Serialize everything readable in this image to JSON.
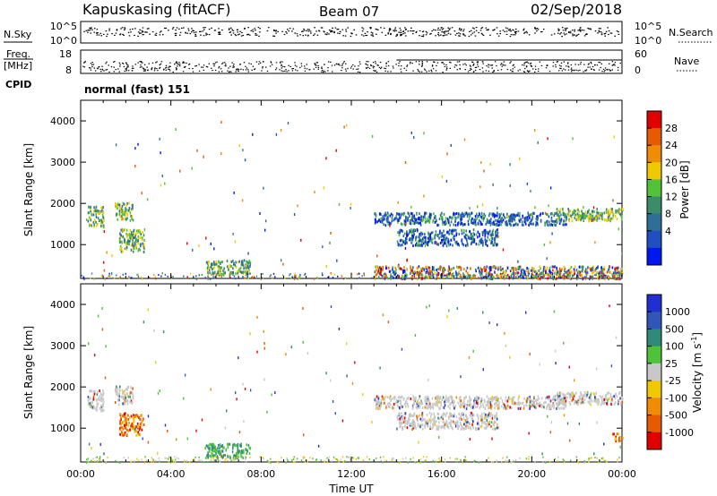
{
  "header": {
    "station": "Kapuskasing (fitACF)",
    "beam": "Beam 07",
    "date": "02/Sep/2018"
  },
  "noise_panel": {
    "left_label": "N.Sky",
    "left_ticks": [
      "10^5",
      "10^0"
    ],
    "right_label": "N.Search",
    "right_ticks": [
      "10^5",
      "10^0"
    ]
  },
  "freq_panel": {
    "left_label_1": "Freq.",
    "left_label_2": "[MHz]",
    "left_ticks": [
      "18",
      "8"
    ],
    "right_label": "Nave",
    "right_ticks": [
      "60",
      "0"
    ]
  },
  "cpid": {
    "label": "CPID",
    "value": "normal (fast) 151"
  },
  "colors": {
    "power": [
      "#0018f0",
      "#1f4fc0",
      "#2e6f9a",
      "#3b8c6a",
      "#52c238",
      "#f0c800",
      "#f08c00",
      "#e85a00",
      "#e00000"
    ],
    "velocity": [
      "#1f2fd0",
      "#2f56b8",
      "#2f8a78",
      "#4fc23a",
      "#c8c8c8",
      "#f0c800",
      "#f08c00",
      "#e85a00",
      "#e00000"
    ]
  },
  "chart_data": [
    {
      "type": "heatmap",
      "panel": "power",
      "ylabel": "Slant Range [km]",
      "ylim": [
        180,
        4500
      ],
      "yticks": [
        "1000",
        "2000",
        "3000",
        "4000"
      ],
      "colorbar": {
        "label": "Power [dB]",
        "ticks": [
          "4",
          "8",
          "12",
          "16",
          "20",
          "24",
          "28"
        ],
        "range": [
          0,
          30
        ]
      },
      "echo_regions": [
        {
          "t": [
            0.3,
            1.0
          ],
          "r": [
            1450,
            1950
          ],
          "value": "moderate"
        },
        {
          "t": [
            1.5,
            2.3
          ],
          "r": [
            1600,
            2050
          ],
          "value": "moderate"
        },
        {
          "t": [
            1.7,
            2.8
          ],
          "r": [
            850,
            1400
          ],
          "value": "moderate"
        },
        {
          "t": [
            5.5,
            7.5
          ],
          "r": [
            300,
            650
          ],
          "value": "moderate"
        },
        {
          "t": [
            13.0,
            21.5
          ],
          "r": [
            1500,
            1800
          ],
          "value": "low"
        },
        {
          "t": [
            14.0,
            18.5
          ],
          "r": [
            1000,
            1400
          ],
          "value": "low"
        },
        {
          "t": [
            21.0,
            24.0
          ],
          "r": [
            1600,
            1900
          ],
          "value": "moderate"
        },
        {
          "t": [
            13.0,
            24.0
          ],
          "r": [
            200,
            500
          ],
          "value": "mixed"
        }
      ]
    },
    {
      "type": "heatmap",
      "panel": "velocity",
      "xlabel": "Time UT",
      "xticks": [
        "00:00",
        "04:00",
        "08:00",
        "12:00",
        "16:00",
        "20:00",
        "00:00"
      ],
      "xlim": [
        "00:00",
        "24:00"
      ],
      "ylabel": "Slant Range [km]",
      "ylim": [
        180,
        4500
      ],
      "yticks": [
        "1000",
        "2000",
        "3000",
        "4000"
      ],
      "colorbar": {
        "label": "Velocity [m s^-1]",
        "ticks": [
          "1000",
          "500",
          "100",
          "25",
          "-25",
          "-100",
          "-500",
          "-1000"
        ]
      },
      "echo_regions": [
        {
          "t": [
            0.3,
            1.0
          ],
          "r": [
            1450,
            1950
          ],
          "value": "near zero"
        },
        {
          "t": [
            1.5,
            2.3
          ],
          "r": [
            1600,
            2050
          ],
          "value": "near zero"
        },
        {
          "t": [
            1.7,
            2.8
          ],
          "r": [
            850,
            1400
          ],
          "value": "negative"
        },
        {
          "t": [
            5.5,
            7.5
          ],
          "r": [
            300,
            650
          ],
          "value": "positive"
        },
        {
          "t": [
            13.0,
            21.5
          ],
          "r": [
            1500,
            1800
          ],
          "value": "near zero"
        },
        {
          "t": [
            14.0,
            18.5
          ],
          "r": [
            1000,
            1400
          ],
          "value": "near zero"
        },
        {
          "t": [
            21.0,
            24.0
          ],
          "r": [
            1600,
            1900
          ],
          "value": "near zero"
        },
        {
          "t": [
            23.5,
            24.0
          ],
          "r": [
            700,
            900
          ],
          "value": "negative"
        }
      ]
    }
  ]
}
